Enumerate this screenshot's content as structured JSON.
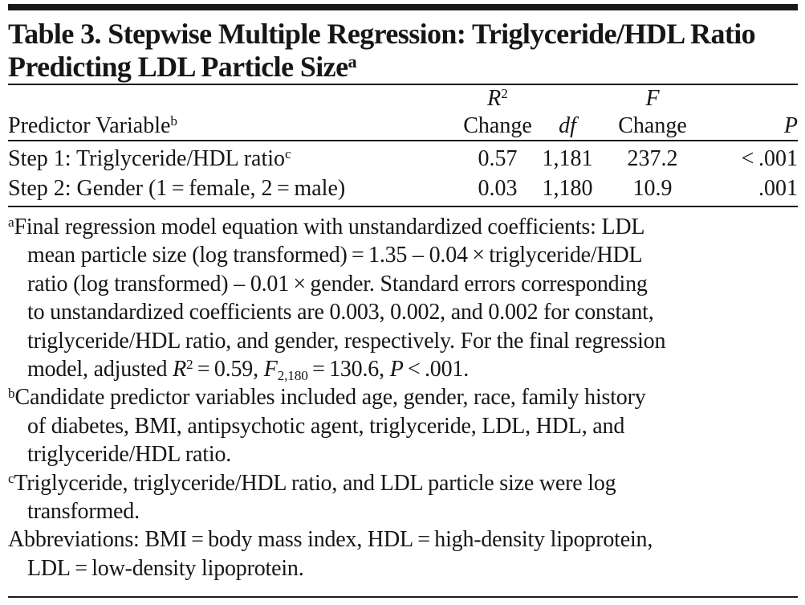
{
  "colors": {
    "background": "#ffffff",
    "text": "#161616",
    "rule": "#1c1c1c",
    "top_bar": "#191919"
  },
  "title": {
    "line1": "Table 3. Stepwise Multiple Regression: Triglyceride/HDL Ratio",
    "line2": "Predicting LDL Particle Size",
    "superscript": "a"
  },
  "table": {
    "headers": {
      "predictor": {
        "label": "Predictor Variable",
        "superscript": "b"
      },
      "r2_change": {
        "symbol": "R",
        "symbol_sup": "2",
        "line2": "Change"
      },
      "df": {
        "label": "df"
      },
      "f_change": {
        "symbol": "F",
        "line2": "Change"
      },
      "p": {
        "label": "P"
      }
    },
    "rows": [
      {
        "predictor": "Step 1: Triglyceride/HDL ratio",
        "superscript": "c",
        "r2_change": "0.57",
        "df": "1,181",
        "f_change": "237.2",
        "p": "< .001"
      },
      {
        "predictor": "Step 2: Gender (1 = female, 2 = male)",
        "superscript": "",
        "r2_change": "0.03",
        "df": "1,180",
        "f_change": "10.9",
        "p": ".001"
      }
    ]
  },
  "footnotes": [
    {
      "marker": "a",
      "segments": [
        {
          "text": "Final regression model equation with unstandardized coefficients: LDL\nmean particle size (log transformed) = 1.35 – 0.04 × triglyceride/HDL\nratio (log transformed) – 0.01 × gender. Standard errors corresponding\nto unstandardized coefficients are 0.003, 0.002, and 0.002 for constant,\ntriglyceride/HDL ratio, and gender, respectively. For the final regression\nmodel, adjusted "
        },
        {
          "text": "R",
          "italic": true
        },
        {
          "text": "2",
          "sup": true
        },
        {
          "text": " = 0.59, "
        },
        {
          "text": "F",
          "italic": true
        },
        {
          "text": "2,180",
          "sub": true
        },
        {
          "text": " = 130.6, "
        },
        {
          "text": "P",
          "italic": true
        },
        {
          "text": " < .001."
        }
      ]
    },
    {
      "marker": "b",
      "segments": [
        {
          "text": "Candidate predictor variables included age, gender, race, family history\nof diabetes, BMI, antipsychotic agent, triglyceride, LDL, HDL, and\ntriglyceride/HDL ratio."
        }
      ]
    },
    {
      "marker": "c",
      "segments": [
        {
          "text": "Triglyceride, triglyceride/HDL ratio, and LDL particle size were log\ntransformed."
        }
      ]
    },
    {
      "marker": "",
      "segments": [
        {
          "text": "Abbreviations: BMI = body mass index, HDL = high-density lipoprotein,\nLDL = low-density lipoprotein."
        }
      ]
    }
  ]
}
